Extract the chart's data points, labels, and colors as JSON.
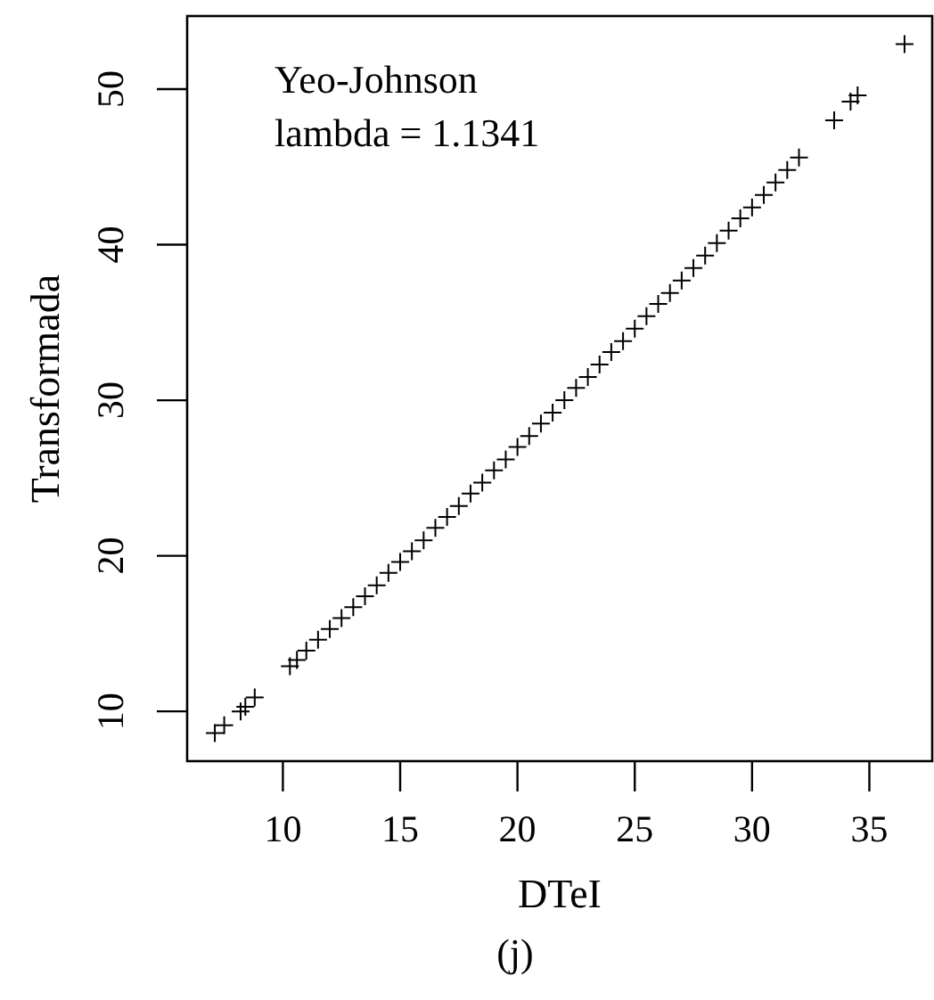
{
  "chart_data": {
    "type": "scatter",
    "xlabel": "DTeI",
    "ylabel": "Transformada",
    "annotations": [
      "Yeo-Johnson",
      "lambda = 1.1341",
      "(j)"
    ],
    "x": [
      7.1,
      7.5,
      8.2,
      8.4,
      8.8,
      10.3,
      10.6,
      11,
      11.5,
      12,
      12.5,
      13,
      13.5,
      14,
      14.5,
      15,
      15.5,
      16,
      16.5,
      17,
      17.5,
      18,
      18.5,
      19,
      19.5,
      20,
      20.5,
      21,
      21.5,
      22,
      22.5,
      23,
      23.5,
      24,
      24.5,
      25,
      25.5,
      26,
      26.5,
      27,
      27.5,
      28,
      28.5,
      29,
      29.5,
      30,
      30.5,
      31,
      31.5,
      32,
      33.5,
      34.2,
      34.5,
      36.5
    ],
    "values": [
      8.6,
      9.1,
      10.0,
      10.3,
      10.9,
      12.9,
      13.3,
      13.9,
      14.6,
      15.3,
      16.0,
      16.7,
      17.4,
      18.1,
      18.9,
      19.6,
      20.3,
      21.0,
      21.8,
      22.5,
      23.2,
      24.0,
      24.7,
      25.5,
      26.2,
      27.0,
      27.7,
      28.5,
      29.2,
      30.0,
      30.8,
      31.5,
      32.3,
      33.1,
      33.8,
      34.6,
      35.4,
      36.2,
      36.9,
      37.7,
      38.5,
      39.3,
      40.1,
      40.9,
      41.7,
      42.4,
      43.2,
      44.0,
      44.8,
      45.6,
      48.0,
      49.2,
      49.6,
      52.9
    ],
    "color": "#000000",
    "marker": "cross",
    "xlim": [
      5.92,
      37.68
    ],
    "ylim": [
      6.8,
      54.7
    ],
    "xticks": [
      10,
      15,
      20,
      25,
      30,
      35
    ],
    "yticks": [
      10,
      20,
      30,
      40,
      50
    ]
  }
}
